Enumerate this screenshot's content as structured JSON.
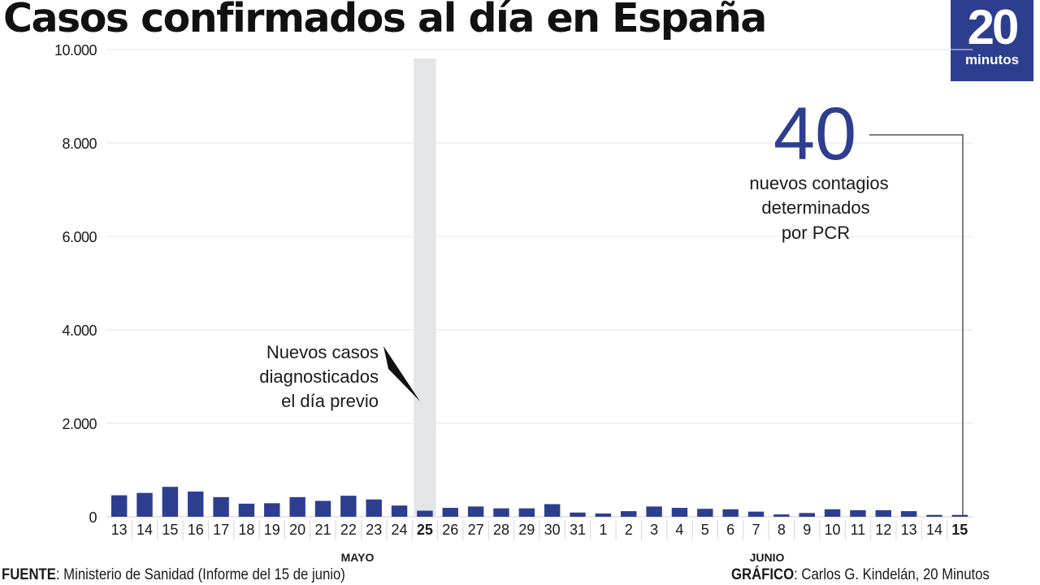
{
  "title": "Casos confirmados al día en España",
  "logo": {
    "number": "20",
    "word": "minutos"
  },
  "callout": {
    "value": "40",
    "lines": [
      "nuevos contagios",
      "determinados",
      "por PCR"
    ]
  },
  "annotation": {
    "lines": [
      "Nuevos casos",
      "diagnosticados",
      "el día previo"
    ]
  },
  "footer": {
    "source_label": "FUENTE",
    "source_text": ": Ministerio de Sanidad (Informe del 15 de junio)",
    "credit_label": "GRÁFICO",
    "credit_text": ": Carlos G. Kindelán, 20 Minutos"
  },
  "colors": {
    "bar": "#2e3e8f",
    "callout": "#2e3e8f",
    "highlight": "#e4e5e7",
    "logo": "#2e3e8f"
  },
  "chart_data": {
    "type": "bar",
    "title": "Casos confirmados al día en España",
    "xlabel": "",
    "ylabel": "",
    "ylim": [
      0,
      10000
    ],
    "yticks": [
      "0",
      "2.000",
      "4.000",
      "6.000",
      "8.000",
      "10.000"
    ],
    "grid": true,
    "month_labels": [
      "MAYO",
      "JUNIO"
    ],
    "categories": [
      "13",
      "14",
      "15",
      "16",
      "17",
      "18",
      "19",
      "20",
      "21",
      "22",
      "23",
      "24",
      "25",
      "26",
      "27",
      "28",
      "29",
      "30",
      "31",
      "1",
      "2",
      "3",
      "4",
      "5",
      "6",
      "7",
      "8",
      "9",
      "10",
      "11",
      "12",
      "13",
      "14",
      "15"
    ],
    "bold_categories": [
      "25",
      "15"
    ],
    "highlight_category_index": 12,
    "values": [
      460,
      510,
      640,
      540,
      420,
      280,
      290,
      420,
      340,
      450,
      370,
      240,
      130,
      190,
      220,
      180,
      180,
      270,
      90,
      70,
      120,
      220,
      190,
      170,
      160,
      110,
      50,
      80,
      160,
      140,
      140,
      120,
      40,
      40
    ]
  }
}
